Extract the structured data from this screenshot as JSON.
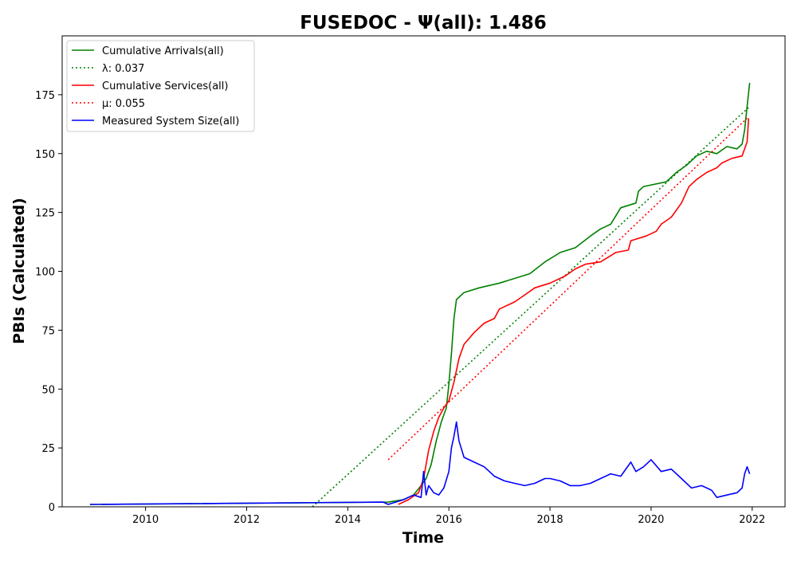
{
  "chart_data": {
    "type": "line",
    "title": "FUSEDOC -  Ψ(all): 1.486",
    "xlabel": "Time",
    "ylabel": "PBIs (Calculated)",
    "xlim": [
      2008.35,
      2022.65
    ],
    "ylim": [
      0,
      200
    ],
    "xticks": [
      2010,
      2012,
      2014,
      2016,
      2018,
      2020,
      2022
    ],
    "xtick_labels": [
      "2010",
      "2012",
      "2014",
      "2016",
      "2018",
      "2020",
      "2022"
    ],
    "yticks": [
      0,
      25,
      50,
      75,
      100,
      125,
      150,
      175
    ],
    "ytick_labels": [
      "0",
      "25",
      "50",
      "75",
      "100",
      "125",
      "150",
      "175"
    ],
    "grid": false,
    "legend_position": "top-left",
    "series": [
      {
        "name": "Cumulative Arrivals(all)",
        "color": "#008000",
        "style": "solid",
        "points": [
          [
            2008.9,
            1
          ],
          [
            2014.8,
            2
          ],
          [
            2015.1,
            3
          ],
          [
            2015.3,
            5
          ],
          [
            2015.45,
            9
          ],
          [
            2015.55,
            12
          ],
          [
            2015.65,
            18
          ],
          [
            2015.75,
            28
          ],
          [
            2015.85,
            36
          ],
          [
            2015.95,
            42
          ],
          [
            2016.0,
            52
          ],
          [
            2016.05,
            65
          ],
          [
            2016.1,
            80
          ],
          [
            2016.15,
            88
          ],
          [
            2016.3,
            91
          ],
          [
            2016.6,
            93
          ],
          [
            2017.0,
            95
          ],
          [
            2017.3,
            97
          ],
          [
            2017.6,
            99
          ],
          [
            2017.9,
            104
          ],
          [
            2018.2,
            108
          ],
          [
            2018.5,
            110
          ],
          [
            2018.8,
            115
          ],
          [
            2019.0,
            118
          ],
          [
            2019.2,
            120
          ],
          [
            2019.4,
            127
          ],
          [
            2019.7,
            129
          ],
          [
            2019.75,
            134
          ],
          [
            2019.85,
            136
          ],
          [
            2020.3,
            138
          ],
          [
            2020.5,
            142
          ],
          [
            2020.7,
            145
          ],
          [
            2020.9,
            149
          ],
          [
            2021.1,
            151
          ],
          [
            2021.3,
            150
          ],
          [
            2021.5,
            153
          ],
          [
            2021.7,
            152
          ],
          [
            2021.8,
            154
          ],
          [
            2021.85,
            160
          ],
          [
            2021.9,
            170
          ],
          [
            2021.95,
            180
          ]
        ]
      },
      {
        "name": "λ: 0.037",
        "color": "#008000",
        "style": "dotted",
        "points": [
          [
            2013.3,
            0
          ],
          [
            2021.95,
            170
          ]
        ]
      },
      {
        "name": "Cumulative Services(all)",
        "color": "#ff0000",
        "style": "solid",
        "points": [
          [
            2015.0,
            1
          ],
          [
            2015.2,
            3
          ],
          [
            2015.4,
            6
          ],
          [
            2015.5,
            12
          ],
          [
            2015.6,
            24
          ],
          [
            2015.7,
            32
          ],
          [
            2015.8,
            38
          ],
          [
            2015.9,
            42
          ],
          [
            2016.0,
            45
          ],
          [
            2016.1,
            53
          ],
          [
            2016.2,
            63
          ],
          [
            2016.3,
            69
          ],
          [
            2016.5,
            74
          ],
          [
            2016.7,
            78
          ],
          [
            2016.9,
            80
          ],
          [
            2017.0,
            84
          ],
          [
            2017.3,
            87
          ],
          [
            2017.5,
            90
          ],
          [
            2017.7,
            93
          ],
          [
            2018.0,
            95
          ],
          [
            2018.3,
            98
          ],
          [
            2018.5,
            101
          ],
          [
            2018.7,
            103
          ],
          [
            2019.0,
            104
          ],
          [
            2019.3,
            108
          ],
          [
            2019.55,
            109
          ],
          [
            2019.6,
            113
          ],
          [
            2019.9,
            115
          ],
          [
            2020.1,
            117
          ],
          [
            2020.2,
            120
          ],
          [
            2020.4,
            123
          ],
          [
            2020.6,
            129
          ],
          [
            2020.75,
            136
          ],
          [
            2020.9,
            139
          ],
          [
            2021.1,
            142
          ],
          [
            2021.3,
            144
          ],
          [
            2021.4,
            146
          ],
          [
            2021.6,
            148
          ],
          [
            2021.8,
            149
          ],
          [
            2021.9,
            155
          ],
          [
            2021.93,
            165
          ]
        ]
      },
      {
        "name": "μ: 0.055",
        "color": "#ff0000",
        "style": "dotted",
        "points": [
          [
            2014.8,
            20
          ],
          [
            2021.9,
            165
          ]
        ]
      },
      {
        "name": "Measured System Size(all)",
        "color": "#0000ff",
        "style": "solid",
        "points": [
          [
            2008.9,
            1
          ],
          [
            2014.7,
            2
          ],
          [
            2014.8,
            1
          ],
          [
            2015.1,
            3
          ],
          [
            2015.3,
            5
          ],
          [
            2015.45,
            4
          ],
          [
            2015.5,
            15
          ],
          [
            2015.55,
            5
          ],
          [
            2015.6,
            9
          ],
          [
            2015.7,
            6
          ],
          [
            2015.8,
            5
          ],
          [
            2015.9,
            8
          ],
          [
            2016.0,
            15
          ],
          [
            2016.05,
            25
          ],
          [
            2016.1,
            30
          ],
          [
            2016.15,
            36
          ],
          [
            2016.2,
            28
          ],
          [
            2016.3,
            21
          ],
          [
            2016.5,
            19
          ],
          [
            2016.7,
            17
          ],
          [
            2016.9,
            13
          ],
          [
            2017.1,
            11
          ],
          [
            2017.3,
            10
          ],
          [
            2017.5,
            9
          ],
          [
            2017.7,
            10
          ],
          [
            2017.9,
            12
          ],
          [
            2018.0,
            12
          ],
          [
            2018.2,
            11
          ],
          [
            2018.4,
            9
          ],
          [
            2018.6,
            9
          ],
          [
            2018.8,
            10
          ],
          [
            2019.0,
            12
          ],
          [
            2019.2,
            14
          ],
          [
            2019.4,
            13
          ],
          [
            2019.6,
            19
          ],
          [
            2019.7,
            15
          ],
          [
            2019.85,
            17
          ],
          [
            2020.0,
            20
          ],
          [
            2020.2,
            15
          ],
          [
            2020.4,
            16
          ],
          [
            2020.6,
            12
          ],
          [
            2020.8,
            8
          ],
          [
            2021.0,
            9
          ],
          [
            2021.2,
            7
          ],
          [
            2021.3,
            4
          ],
          [
            2021.5,
            5
          ],
          [
            2021.7,
            6
          ],
          [
            2021.8,
            8
          ],
          [
            2021.85,
            14
          ],
          [
            2021.9,
            17
          ],
          [
            2021.95,
            14
          ]
        ]
      }
    ]
  }
}
